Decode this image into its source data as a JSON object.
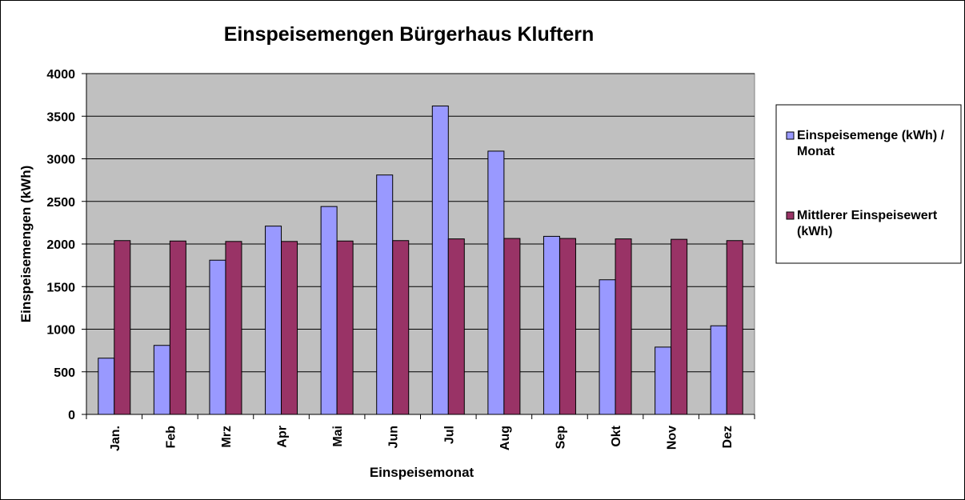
{
  "chart_data": {
    "type": "bar",
    "title": "Einspeisemengen Bürgerhaus Kluftern",
    "xlabel": "Einspeisemonat",
    "ylabel": "Einspeisemengen (kWh)",
    "categories": [
      "Jan.",
      "Feb",
      "Mrz",
      "Apr",
      "Mai",
      "Jun",
      "Jul",
      "Aug",
      "Sep",
      "Okt",
      "Nov",
      "Dez"
    ],
    "ylim": [
      0,
      4000
    ],
    "yticks": [
      0,
      500,
      1000,
      1500,
      2000,
      2500,
      3000,
      3500,
      4000
    ],
    "grid": true,
    "legend_position": "right",
    "series": [
      {
        "name": "Einspeisemenge (kWh) / Monat",
        "legend_lines": [
          "Einspeisemenge (kWh) /",
          "Monat"
        ],
        "color": "#9999ff",
        "values": [
          660,
          810,
          1810,
          2210,
          2440,
          2810,
          3620,
          3090,
          2090,
          1580,
          790,
          1040
        ]
      },
      {
        "name": "Mittlerer Einspeisewert (kWh)",
        "legend_lines": [
          "Mittlerer Einspeisewert",
          "(kWh)"
        ],
        "color": "#993366",
        "values": [
          2040,
          2035,
          2030,
          2030,
          2035,
          2040,
          2060,
          2065,
          2065,
          2060,
          2055,
          2040
        ]
      }
    ],
    "plot_background": "#c0c0c0"
  }
}
